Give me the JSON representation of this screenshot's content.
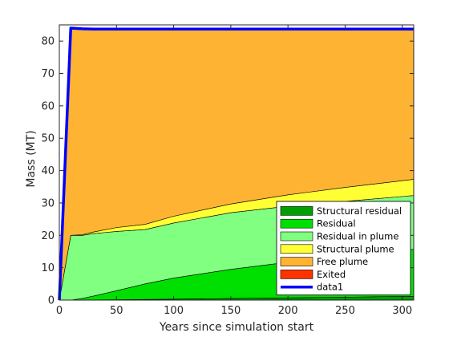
{
  "chart_data": {
    "type": "area",
    "title": "",
    "xlabel": "Years since simulation start",
    "ylabel": "Mass (MT)",
    "xlim": [
      0,
      310
    ],
    "ylim": [
      0,
      85
    ],
    "xticks": [
      0,
      50,
      100,
      150,
      200,
      250,
      300
    ],
    "yticks": [
      0,
      10,
      20,
      30,
      40,
      50,
      60,
      70,
      80
    ],
    "grid": false,
    "legend_location": "bottom-right",
    "x": [
      0,
      10,
      20,
      30,
      50,
      75,
      100,
      150,
      200,
      250,
      310
    ],
    "series": [
      {
        "name": "Structural residual",
        "kind": "stacked-area",
        "color": "#00a000",
        "values": [
          0,
          0,
          0,
          0.05,
          0.1,
          0.2,
          0.3,
          0.5,
          0.7,
          0.9,
          1.2
        ]
      },
      {
        "name": "Residual",
        "kind": "stacked-area",
        "color": "#00e000",
        "values": [
          0,
          0,
          0.5,
          1.2,
          2.8,
          4.8,
          6.5,
          9.0,
          11.0,
          12.7,
          14.5
        ]
      },
      {
        "name": "Residual in plume",
        "kind": "stacked-area",
        "color": "#80ff80",
        "values": [
          0,
          20,
          19.5,
          19.3,
          18.3,
          16.8,
          17.0,
          17.5,
          17.3,
          16.9,
          16.6
        ]
      },
      {
        "name": "Structural plume",
        "kind": "stacked-area",
        "color": "#ffff33",
        "values": [
          0,
          0,
          0.2,
          0.5,
          1.2,
          1.6,
          2.1,
          2.7,
          3.5,
          4.3,
          5.0
        ]
      },
      {
        "name": "Free plume",
        "kind": "stacked-area",
        "color": "#ffb333",
        "values": [
          0,
          64,
          63.6,
          62.7,
          61.3,
          60.3,
          57.8,
          54.0,
          51.2,
          48.9,
          46.4
        ]
      },
      {
        "name": "Exited",
        "kind": "stacked-area",
        "color": "#ff3300",
        "values": [
          0,
          0,
          0,
          0,
          0,
          0,
          0,
          0,
          0,
          0,
          0
        ]
      },
      {
        "name": "data1",
        "kind": "line",
        "color": "#0000ff",
        "values": [
          0,
          84,
          83.8,
          83.7,
          83.7,
          83.7,
          83.7,
          83.7,
          83.7,
          83.7,
          83.7
        ]
      }
    ]
  }
}
